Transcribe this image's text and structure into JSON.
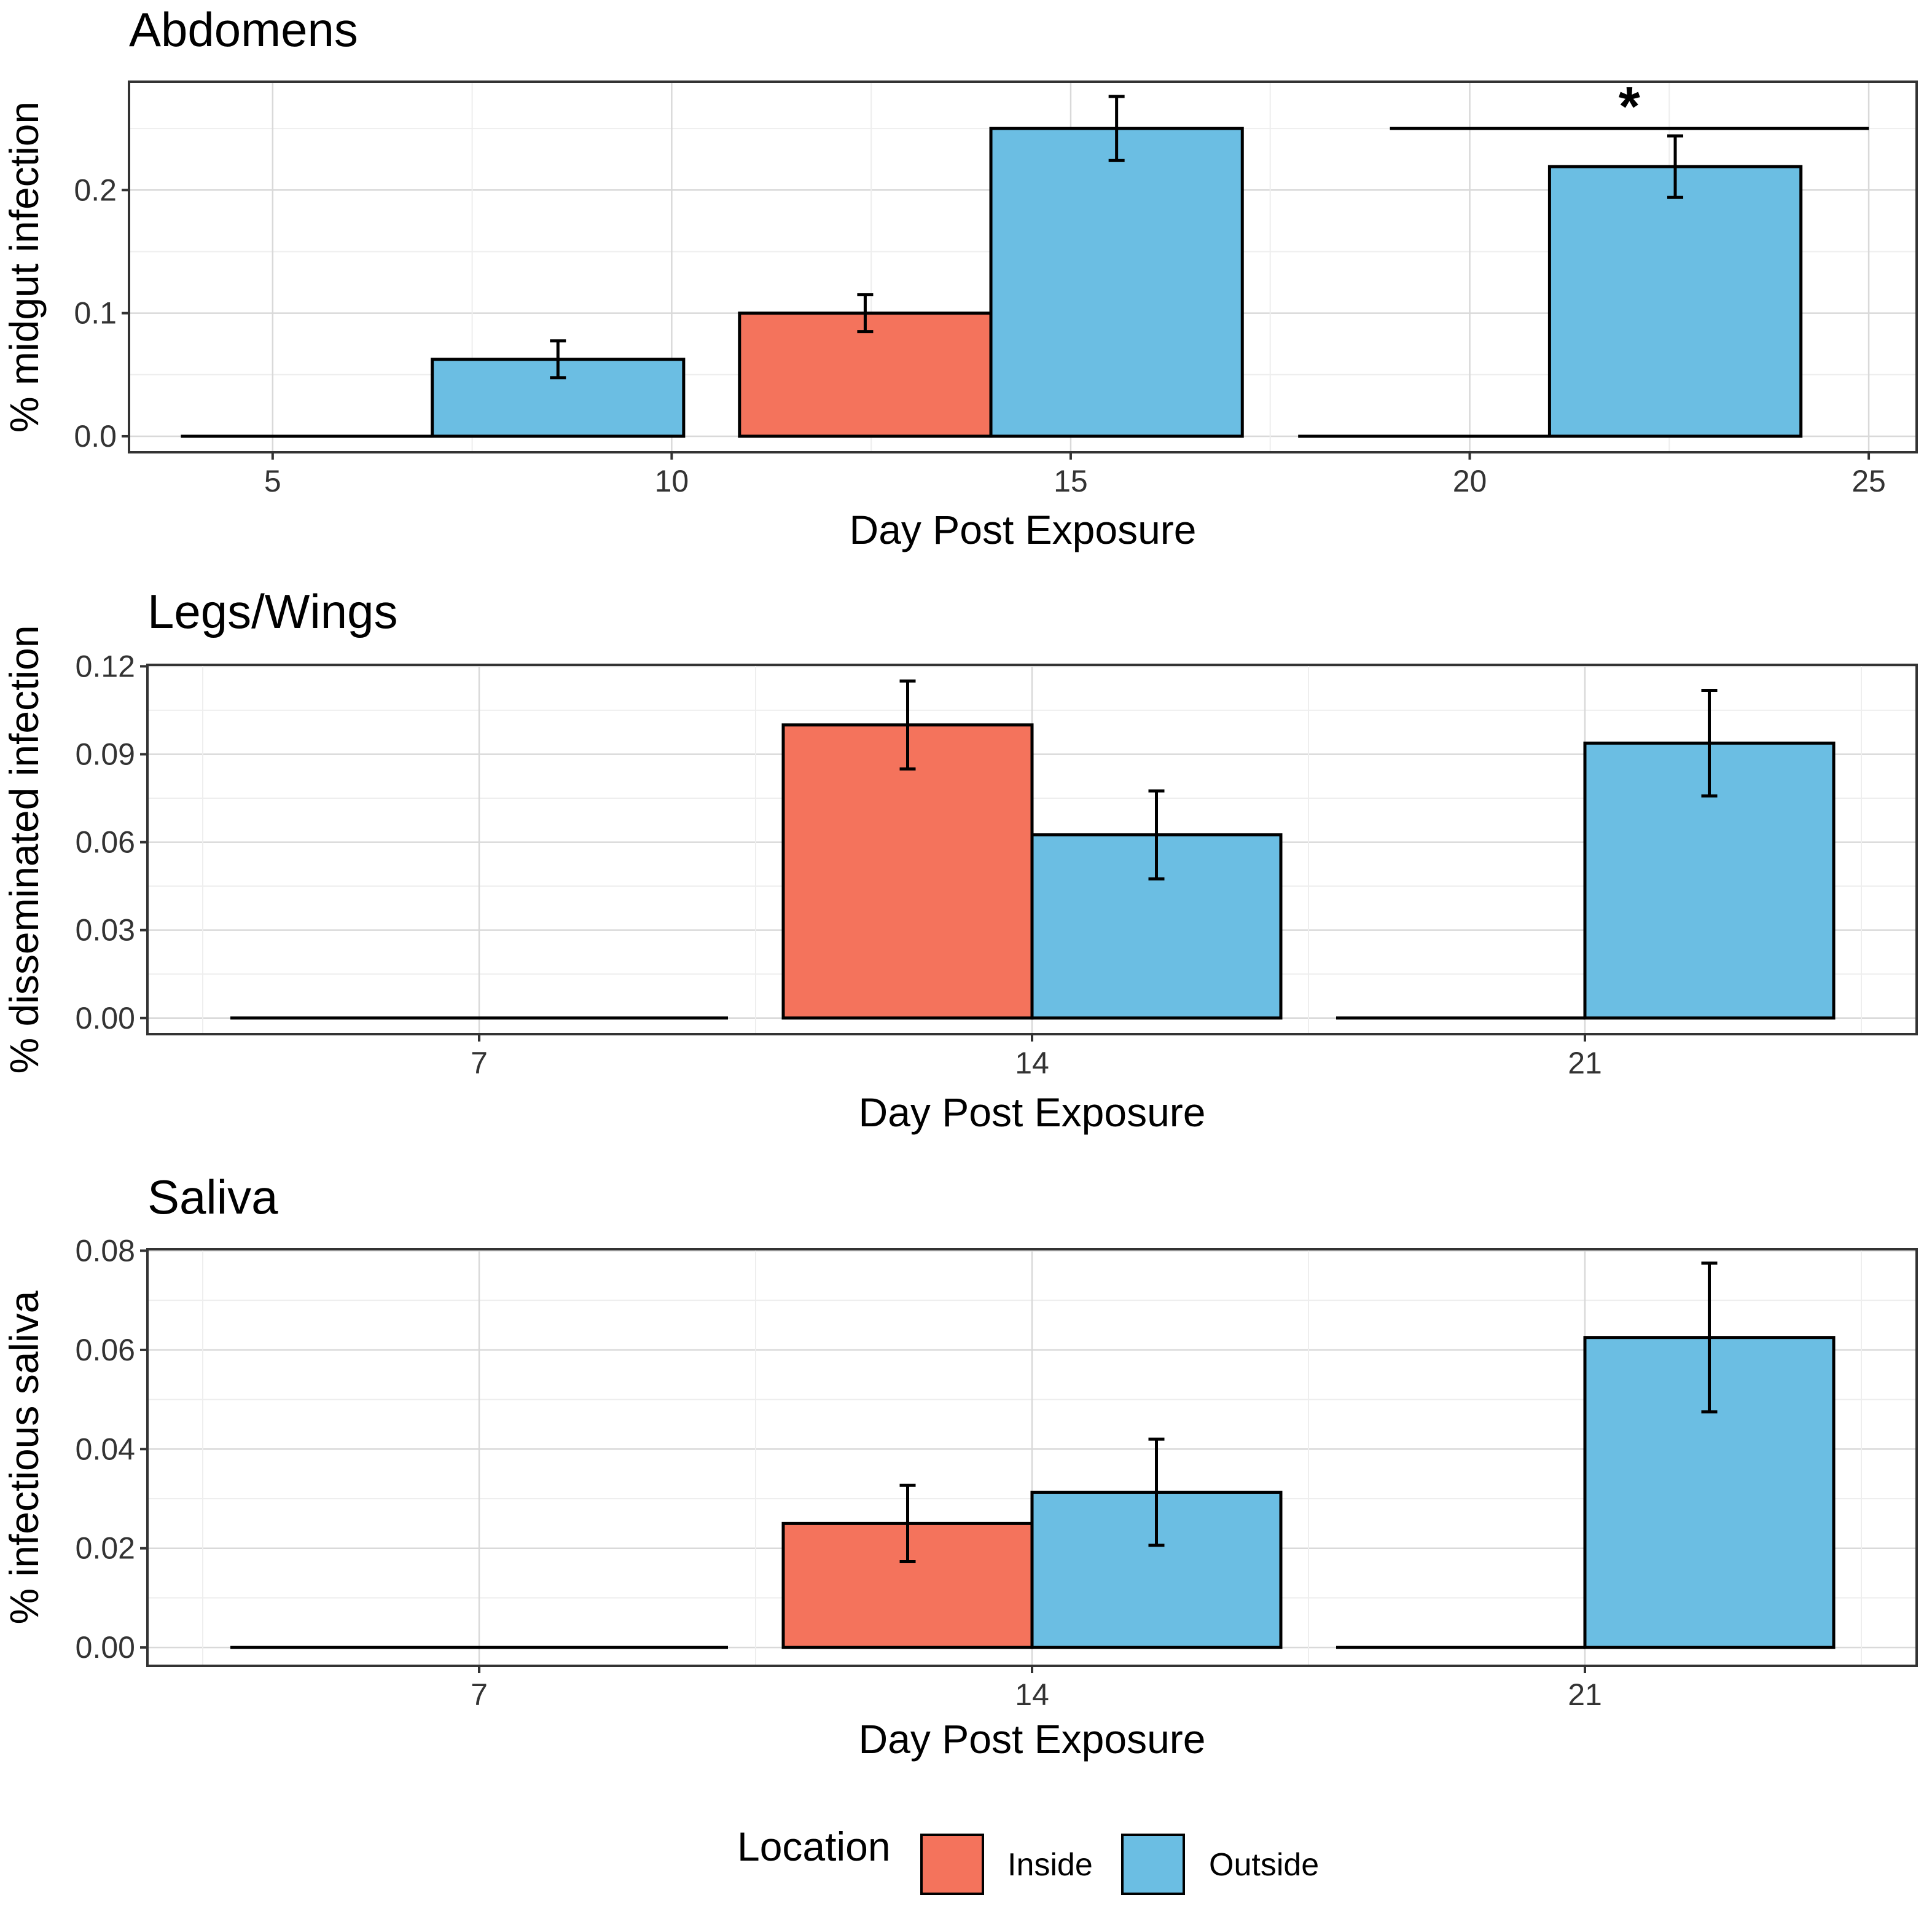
{
  "chart_data": [
    {
      "type": "bar",
      "title": "Abdomens",
      "xlabel": "Day Post Exposure",
      "ylabel": "% midgut infection",
      "x_axis": "continuous",
      "xlim": [
        3.2,
        25.6
      ],
      "xticks": [
        5,
        10,
        15,
        20,
        25
      ],
      "ylim": [
        -0.013,
        0.288
      ],
      "yticks": [
        0.0,
        0.1,
        0.2
      ],
      "ytick_labels": [
        "0.0",
        "0.1",
        "0.2"
      ],
      "bar_halfspan": 3.15,
      "categories": [
        7,
        14,
        21
      ],
      "series": [
        {
          "name": "Inside",
          "values": [
            0,
            0.1,
            0
          ],
          "errors": [
            0,
            0.015,
            0
          ]
        },
        {
          "name": "Outside",
          "values": [
            0.0625,
            0.25,
            0.219
          ],
          "errors": [
            0.015,
            0.026,
            0.025
          ]
        }
      ],
      "annotations": [
        {
          "text": "*",
          "x_from": 19,
          "x_to": 25,
          "y": 0.25
        }
      ]
    },
    {
      "type": "bar",
      "title": "Legs/Wings",
      "xlabel": "Day Post Exposure",
      "ylabel": "% disseminated infection",
      "x_axis": "categorical",
      "ylim": [
        -0.0055,
        0.1205
      ],
      "yticks": [
        0.0,
        0.03,
        0.06,
        0.09,
        0.12
      ],
      "ytick_labels": [
        "0.00",
        "0.03",
        "0.06",
        "0.09",
        "0.12"
      ],
      "categories": [
        "7",
        "14",
        "21"
      ],
      "series": [
        {
          "name": "Inside",
          "values": [
            0,
            0.1,
            0
          ],
          "errors": [
            0,
            0.015,
            0
          ]
        },
        {
          "name": "Outside",
          "values": [
            0,
            0.0625,
            0.0938
          ],
          "errors": [
            0,
            0.015,
            0.018
          ]
        }
      ]
    },
    {
      "type": "bar",
      "title": "Saliva",
      "xlabel": "Day Post Exposure",
      "ylabel": "% infectious saliva",
      "x_axis": "categorical",
      "ylim": [
        -0.0037,
        0.0803
      ],
      "yticks": [
        0.0,
        0.02,
        0.04,
        0.06,
        0.08
      ],
      "ytick_labels": [
        "0.00",
        "0.02",
        "0.04",
        "0.06",
        "0.08"
      ],
      "categories": [
        "7",
        "14",
        "21"
      ],
      "series": [
        {
          "name": "Inside",
          "values": [
            0,
            0.025,
            0
          ],
          "errors": [
            0,
            0.0077,
            0
          ]
        },
        {
          "name": "Outside",
          "values": [
            0,
            0.0313,
            0.0625
          ],
          "errors": [
            0,
            0.0107,
            0.015
          ]
        }
      ]
    }
  ],
  "legend": {
    "title": "Location",
    "position": "bottom",
    "items": [
      {
        "label": "Inside",
        "color": "#F4735C"
      },
      {
        "label": "Outside",
        "color": "#6BBEE3"
      }
    ]
  },
  "colors": {
    "Inside": "#F4735C",
    "Outside": "#6BBEE3",
    "grid_major": "#D9D9D9",
    "grid_minor": "#EEEEEE",
    "border": "#333333"
  }
}
